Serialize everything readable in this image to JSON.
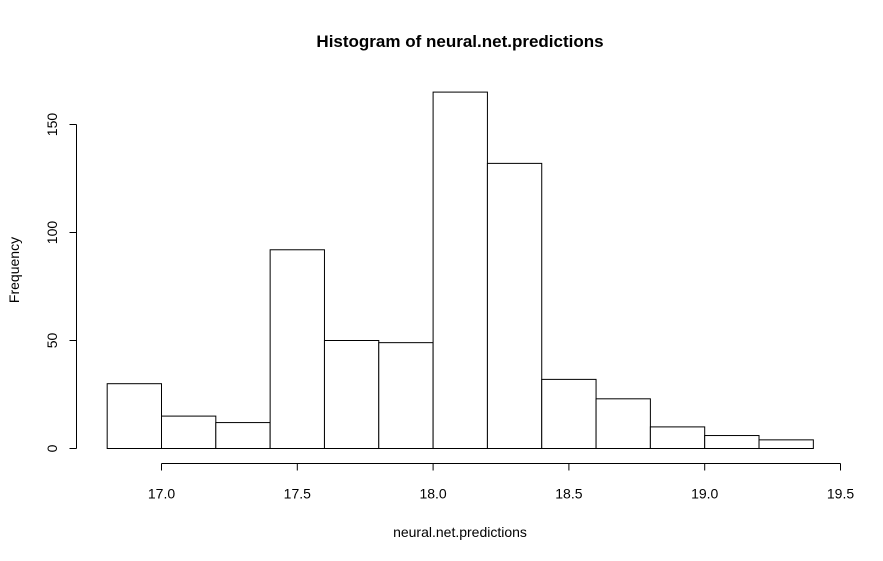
{
  "chart_data": {
    "type": "bar",
    "title": "Histogram of neural.net.predictions",
    "xlabel": "neural.net.predictions",
    "ylabel": "Frequency",
    "bins": [
      {
        "from": 16.8,
        "to": 17.0,
        "count": 30
      },
      {
        "from": 17.0,
        "to": 17.2,
        "count": 15
      },
      {
        "from": 17.2,
        "to": 17.4,
        "count": 12
      },
      {
        "from": 17.4,
        "to": 17.6,
        "count": 92
      },
      {
        "from": 17.6,
        "to": 17.8,
        "count": 50
      },
      {
        "from": 17.8,
        "to": 18.0,
        "count": 49
      },
      {
        "from": 18.0,
        "to": 18.2,
        "count": 165
      },
      {
        "from": 18.2,
        "to": 18.4,
        "count": 132
      },
      {
        "from": 18.4,
        "to": 18.6,
        "count": 32
      },
      {
        "from": 18.6,
        "to": 18.8,
        "count": 23
      },
      {
        "from": 18.8,
        "to": 19.0,
        "count": 10
      },
      {
        "from": 19.0,
        "to": 19.2,
        "count": 6
      },
      {
        "from": 19.2,
        "to": 19.4,
        "count": 4
      }
    ],
    "x_ticks": [
      {
        "value": 17.0,
        "label": "17.0"
      },
      {
        "value": 17.5,
        "label": "17.5"
      },
      {
        "value": 18.0,
        "label": "18.0"
      },
      {
        "value": 18.5,
        "label": "18.5"
      },
      {
        "value": 19.0,
        "label": "19.0"
      },
      {
        "value": 19.5,
        "label": "19.5"
      }
    ],
    "y_ticks": [
      {
        "value": 0,
        "label": "0"
      },
      {
        "value": 50,
        "label": "50"
      },
      {
        "value": 100,
        "label": "100"
      },
      {
        "value": 150,
        "label": "150"
      }
    ],
    "xlim": [
      16.8,
      19.4
    ],
    "ylim": [
      0,
      165
    ],
    "grid": false,
    "legend": "none",
    "bar_fill": "#ffffff",
    "bar_stroke": "#000000"
  }
}
